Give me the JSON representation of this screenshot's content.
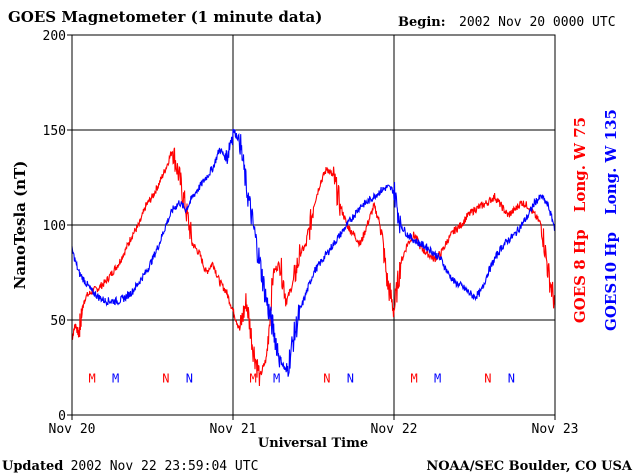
{
  "header": {
    "title": "GOES Magnetometer (1 minute data)",
    "begin_label": "Begin:",
    "begin_value": "2002 Nov 20 0000 UTC"
  },
  "footer": {
    "updated_label": "Updated",
    "updated_value": "2002 Nov 22 23:59:04 UTC",
    "credit": "NOAA/SEC Boulder, CO USA"
  },
  "chart_data": {
    "type": "line",
    "xlabel": "Universal Time",
    "ylabel": "NanoTesla (nT)",
    "xlim": [
      0,
      72
    ],
    "ylim": [
      0,
      200
    ],
    "x_unit": "hours since begin",
    "x_ticks": [
      {
        "x": 0,
        "label": "Nov 20"
      },
      {
        "x": 24,
        "label": "Nov 21"
      },
      {
        "x": 48,
        "label": "Nov 22"
      },
      {
        "x": 72,
        "label": "Nov 23"
      }
    ],
    "y_ticks": [
      0,
      50,
      100,
      150,
      200
    ],
    "grid": true,
    "series": [
      {
        "name": "GOES 8 Hp",
        "legend_suffix": "Long. W 75",
        "color": "#ff0000",
        "x": [
          0,
          0.5,
          1,
          1.5,
          2,
          3,
          4,
          5,
          6,
          7,
          8,
          9,
          10,
          11,
          12,
          13,
          14,
          15,
          16,
          17,
          18,
          19,
          20,
          21,
          22,
          23,
          24,
          25,
          26,
          27,
          28,
          29,
          30,
          31,
          32,
          33,
          34,
          35,
          36,
          37,
          38,
          39,
          40,
          41,
          42,
          43,
          44,
          45,
          46,
          47,
          48,
          49,
          50,
          51,
          52,
          53,
          54,
          55,
          56,
          57,
          58,
          59,
          60,
          61,
          62,
          63,
          64,
          65,
          66,
          67,
          68,
          69,
          70,
          71,
          72
        ],
        "values": [
          40,
          48,
          42,
          55,
          62,
          65,
          67,
          70,
          75,
          80,
          87,
          95,
          100,
          110,
          115,
          122,
          130,
          140,
          125,
          108,
          90,
          85,
          75,
          80,
          70,
          65,
          55,
          45,
          60,
          35,
          20,
          30,
          75,
          80,
          60,
          70,
          85,
          90,
          110,
          122,
          130,
          125,
          110,
          100,
          95,
          90,
          100,
          110,
          100,
          70,
          55,
          80,
          90,
          95,
          88,
          85,
          82,
          85,
          92,
          97,
          100,
          105,
          108,
          110,
          112,
          115,
          110,
          105,
          108,
          112,
          110,
          105,
          100,
          75,
          58
        ]
      },
      {
        "name": "GOES10 Hp",
        "legend_suffix": "Long. W 135",
        "color": "#0000ff",
        "x": [
          0,
          1,
          2,
          3,
          4,
          5,
          6,
          7,
          8,
          9,
          10,
          11,
          12,
          13,
          14,
          15,
          16,
          17,
          18,
          19,
          20,
          21,
          22,
          23,
          24,
          25,
          26,
          27,
          28,
          29,
          30,
          31,
          32,
          33,
          34,
          35,
          36,
          37,
          38,
          39,
          40,
          41,
          42,
          43,
          44,
          45,
          46,
          47,
          48,
          49,
          50,
          51,
          52,
          53,
          54,
          55,
          56,
          57,
          58,
          59,
          60,
          61,
          62,
          63,
          64,
          65,
          66,
          67,
          68,
          69,
          70,
          71,
          72
        ],
        "values": [
          87,
          75,
          70,
          65,
          62,
          60,
          60,
          60,
          62,
          65,
          70,
          75,
          82,
          90,
          100,
          108,
          112,
          108,
          115,
          120,
          125,
          130,
          140,
          135,
          150,
          145,
          120,
          100,
          80,
          60,
          45,
          30,
          22,
          40,
          55,
          65,
          75,
          80,
          85,
          90,
          95,
          100,
          105,
          110,
          112,
          115,
          118,
          120,
          118,
          100,
          95,
          92,
          90,
          88,
          85,
          82,
          75,
          70,
          68,
          65,
          62,
          65,
          75,
          82,
          88,
          92,
          95,
          100,
          105,
          112,
          115,
          110,
          98
        ]
      }
    ],
    "markers": [
      {
        "x": 3,
        "label": "M",
        "color": "#ff0000"
      },
      {
        "x": 6.5,
        "label": "M",
        "color": "#0000ff"
      },
      {
        "x": 14,
        "label": "N",
        "color": "#ff0000"
      },
      {
        "x": 17.5,
        "label": "N",
        "color": "#0000ff"
      },
      {
        "x": 27,
        "label": "M",
        "color": "#ff0000"
      },
      {
        "x": 30.5,
        "label": "M",
        "color": "#0000ff"
      },
      {
        "x": 38,
        "label": "N",
        "color": "#ff0000"
      },
      {
        "x": 41.5,
        "label": "N",
        "color": "#0000ff"
      },
      {
        "x": 51,
        "label": "M",
        "color": "#ff0000"
      },
      {
        "x": 54.5,
        "label": "M",
        "color": "#0000ff"
      },
      {
        "x": 62,
        "label": "N",
        "color": "#ff0000"
      },
      {
        "x": 65.5,
        "label": "N",
        "color": "#0000ff"
      }
    ],
    "marker_y": 17
  }
}
